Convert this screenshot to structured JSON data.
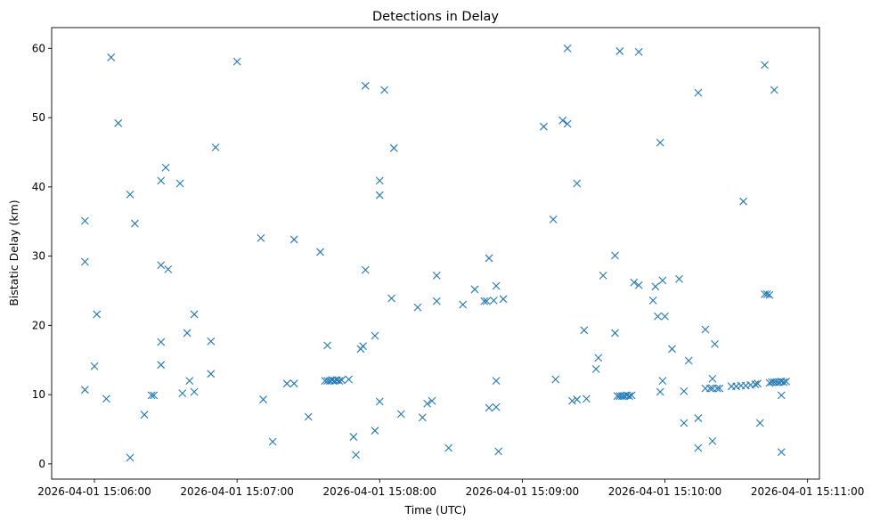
{
  "chart_data": {
    "type": "scatter",
    "title": "Detections in Delay",
    "xlabel": "Time (UTC)",
    "ylabel": "Bistatic Delay (km)",
    "date": "2026-04-01",
    "xlim": [
      "15:05:42",
      "15:11:05"
    ],
    "ylim": [
      -2.2,
      63.0
    ],
    "xticks": [
      "2026-04-01 15:06:00",
      "2026-04-01 15:07:00",
      "2026-04-01 15:08:00",
      "2026-04-01 15:09:00",
      "2026-04-01 15:10:00",
      "2026-04-01 15:11:00"
    ],
    "yticks": [
      0,
      10,
      20,
      30,
      40,
      50,
      60
    ],
    "grid": false,
    "marker": "x",
    "color": "#1f77b4",
    "points": [
      [
        "15:05:56",
        35.1
      ],
      [
        "15:05:56",
        29.2
      ],
      [
        "15:05:56",
        10.7
      ],
      [
        "15:06:00",
        14.1
      ],
      [
        "15:06:01",
        21.6
      ],
      [
        "15:06:05",
        9.4
      ],
      [
        "15:06:07",
        58.7
      ],
      [
        "15:06:10",
        49.2
      ],
      [
        "15:06:15",
        0.9
      ],
      [
        "15:06:15",
        38.9
      ],
      [
        "15:06:17",
        34.7
      ],
      [
        "15:06:21",
        7.1
      ],
      [
        "15:06:24",
        9.9
      ],
      [
        "15:06:25",
        9.9
      ],
      [
        "15:06:28",
        40.9
      ],
      [
        "15:06:28",
        28.7
      ],
      [
        "15:06:28",
        17.6
      ],
      [
        "15:06:28",
        14.3
      ],
      [
        "15:06:30",
        42.8
      ],
      [
        "15:06:31",
        28.1
      ],
      [
        "15:06:36",
        40.5
      ],
      [
        "15:06:37",
        10.2
      ],
      [
        "15:06:39",
        18.9
      ],
      [
        "15:06:40",
        12.0
      ],
      [
        "15:06:42",
        10.4
      ],
      [
        "15:06:42",
        21.6
      ],
      [
        "15:06:49",
        13.0
      ],
      [
        "15:06:49",
        17.7
      ],
      [
        "15:06:51",
        45.7
      ],
      [
        "15:07:00",
        58.1
      ],
      [
        "15:07:10",
        32.6
      ],
      [
        "15:07:11",
        9.3
      ],
      [
        "15:07:15",
        3.2
      ],
      [
        "15:07:21",
        11.6
      ],
      [
        "15:07:24",
        11.6
      ],
      [
        "15:07:24",
        32.4
      ],
      [
        "15:07:30",
        6.8
      ],
      [
        "15:07:35",
        30.6
      ],
      [
        "15:07:37",
        12.0
      ],
      [
        "15:07:38",
        17.1
      ],
      [
        "15:07:38",
        12.0
      ],
      [
        "15:07:39",
        12.0
      ],
      [
        "15:07:40",
        12.1
      ],
      [
        "15:07:41",
        12.0
      ],
      [
        "15:07:42",
        12.1
      ],
      [
        "15:07:43",
        12.0
      ],
      [
        "15:07:44",
        12.1
      ],
      [
        "15:07:47",
        12.2
      ],
      [
        "15:07:49",
        3.9
      ],
      [
        "15:07:50",
        1.3
      ],
      [
        "15:07:52",
        16.6
      ],
      [
        "15:07:53",
        17.0
      ],
      [
        "15:07:54",
        28.0
      ],
      [
        "15:07:54",
        54.6
      ],
      [
        "15:07:58",
        4.8
      ],
      [
        "15:07:58",
        18.5
      ],
      [
        "15:08:00",
        40.9
      ],
      [
        "15:08:00",
        38.8
      ],
      [
        "15:08:00",
        9.0
      ],
      [
        "15:08:02",
        54.0
      ],
      [
        "15:08:05",
        23.9
      ],
      [
        "15:08:06",
        45.6
      ],
      [
        "15:08:09",
        7.2
      ],
      [
        "15:08:16",
        22.6
      ],
      [
        "15:08:18",
        6.7
      ],
      [
        "15:08:20",
        8.7
      ],
      [
        "15:08:22",
        9.1
      ],
      [
        "15:08:24",
        27.2
      ],
      [
        "15:08:24",
        23.5
      ],
      [
        "15:08:29",
        2.3
      ],
      [
        "15:08:35",
        23.0
      ],
      [
        "15:08:40",
        25.2
      ],
      [
        "15:08:44",
        23.5
      ],
      [
        "15:08:45",
        23.5
      ],
      [
        "15:08:46",
        29.7
      ],
      [
        "15:08:46",
        8.1
      ],
      [
        "15:08:48",
        23.6
      ],
      [
        "15:08:49",
        25.7
      ],
      [
        "15:08:49",
        12.0
      ],
      [
        "15:08:49",
        8.2
      ],
      [
        "15:08:50",
        1.8
      ],
      [
        "15:08:52",
        23.8
      ],
      [
        "15:09:09",
        48.7
      ],
      [
        "15:09:13",
        35.3
      ],
      [
        "15:09:14",
        12.2
      ],
      [
        "15:09:17",
        49.6
      ],
      [
        "15:09:19",
        60.0
      ],
      [
        "15:09:19",
        49.1
      ],
      [
        "15:09:21",
        9.1
      ],
      [
        "15:09:23",
        9.3
      ],
      [
        "15:09:23",
        40.5
      ],
      [
        "15:09:26",
        19.3
      ],
      [
        "15:09:27",
        9.4
      ],
      [
        "15:09:31",
        13.7
      ],
      [
        "15:09:32",
        15.3
      ],
      [
        "15:09:34",
        27.2
      ],
      [
        "15:09:39",
        30.1
      ],
      [
        "15:09:39",
        18.9
      ],
      [
        "15:09:40",
        9.8
      ],
      [
        "15:09:41",
        9.8
      ],
      [
        "15:09:42",
        9.8
      ],
      [
        "15:09:43",
        9.8
      ],
      [
        "15:09:44",
        9.9
      ],
      [
        "15:09:45",
        9.8
      ],
      [
        "15:09:46",
        9.9
      ],
      [
        "15:09:41",
        59.6
      ],
      [
        "15:09:47",
        26.2
      ],
      [
        "15:09:49",
        25.8
      ],
      [
        "15:09:49",
        59.5
      ],
      [
        "15:09:55",
        23.6
      ],
      [
        "15:09:56",
        25.6
      ],
      [
        "15:09:57",
        21.3
      ],
      [
        "15:09:58",
        46.4
      ],
      [
        "15:09:58",
        10.4
      ],
      [
        "15:09:59",
        12.0
      ],
      [
        "15:09:59",
        26.5
      ],
      [
        "15:10:00",
        21.3
      ],
      [
        "15:10:03",
        16.6
      ],
      [
        "15:10:06",
        26.7
      ],
      [
        "15:10:08",
        5.9
      ],
      [
        "15:10:08",
        10.5
      ],
      [
        "15:10:10",
        14.9
      ],
      [
        "15:10:14",
        53.6
      ],
      [
        "15:10:14",
        6.6
      ],
      [
        "15:10:14",
        2.3
      ],
      [
        "15:10:17",
        19.4
      ],
      [
        "15:10:17",
        10.9
      ],
      [
        "15:10:19",
        10.9
      ],
      [
        "15:10:20",
        10.9
      ],
      [
        "15:10:22",
        10.9
      ],
      [
        "15:10:23",
        10.9
      ],
      [
        "15:10:20",
        3.3
      ],
      [
        "15:10:20",
        12.3
      ],
      [
        "15:10:21",
        17.3
      ],
      [
        "15:10:28",
        11.2
      ],
      [
        "15:10:30",
        11.2
      ],
      [
        "15:10:32",
        11.3
      ],
      [
        "15:10:34",
        11.3
      ],
      [
        "15:10:36",
        11.4
      ],
      [
        "15:10:38",
        11.5
      ],
      [
        "15:10:39",
        11.6
      ],
      [
        "15:10:33",
        37.9
      ],
      [
        "15:10:40",
        5.9
      ],
      [
        "15:10:42",
        24.5
      ],
      [
        "15:10:42",
        57.6
      ],
      [
        "15:10:43",
        24.5
      ],
      [
        "15:10:44",
        24.4
      ],
      [
        "15:10:46",
        54.0
      ],
      [
        "15:10:44",
        11.7
      ],
      [
        "15:10:45",
        11.8
      ],
      [
        "15:10:46",
        11.8
      ],
      [
        "15:10:47",
        11.8
      ],
      [
        "15:10:48",
        11.8
      ],
      [
        "15:10:49",
        11.9
      ],
      [
        "15:10:50",
        11.8
      ],
      [
        "15:10:51",
        11.9
      ],
      [
        "15:10:49",
        9.9
      ],
      [
        "15:10:49",
        1.7
      ]
    ]
  }
}
